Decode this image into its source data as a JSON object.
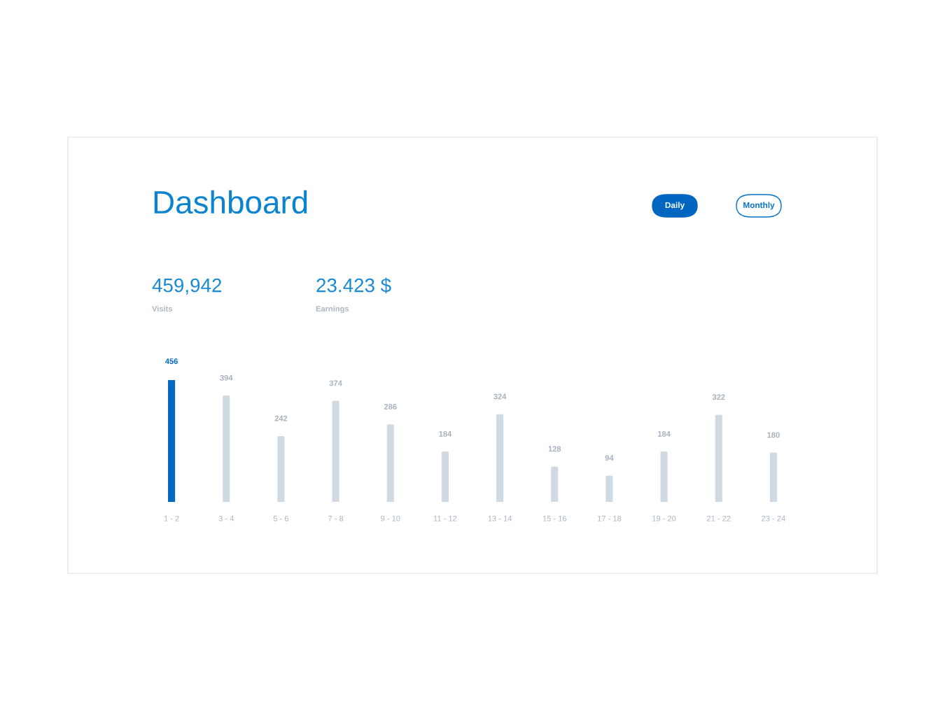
{
  "chart_data": {
    "type": "bar",
    "title": "Dashboard",
    "annotations": [
      "Daily",
      "Monthly",
      "459,942",
      "Visits",
      "23.423 $",
      "Earnings"
    ],
    "categories": [
      "1 - 2",
      "3 - 4",
      "5 - 6",
      "7 - 8",
      "9 - 10",
      "11 - 12",
      "13 - 14",
      "15 - 16",
      "17 - 18",
      "19 - 20",
      "21 - 22",
      "23 - 24"
    ],
    "values": [
      456,
      394,
      242,
      374,
      286,
      184,
      324,
      128,
      94,
      184,
      322,
      180
    ],
    "colors": [
      "#0069c0",
      "#d0dae2",
      "#d0dae2",
      "#d0dae2",
      "#d0dae2",
      "#d0dae2",
      "#d0dae2",
      "#d0dae2",
      "#d0dae2",
      "#d0dae2",
      "#d0dae2",
      "#d0dae2"
    ],
    "data_labels": true
  }
}
